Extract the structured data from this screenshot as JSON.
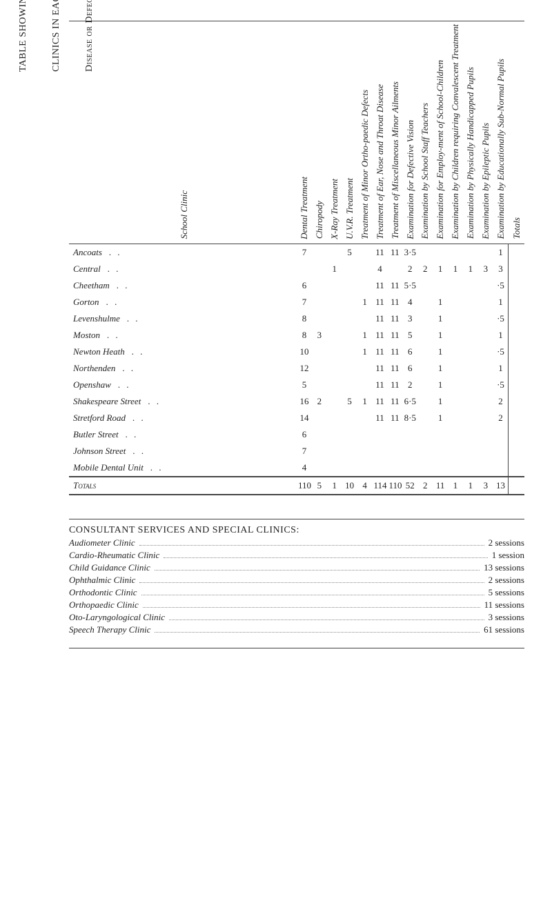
{
  "title_lines": [
    "TABLE SHOWING THE AVERAGE NUMBER OF HALF-DAY SESSIONS HELD AT SCHOOL",
    "CLINICS IN EACH WEEK DURING THE YEAR",
    "Disease or Defect"
  ],
  "first_col_header": "School Clinic",
  "columns": [
    "Dental Treatment",
    "Chiropody",
    "X-Ray Treatment",
    "U.V.R. Treatment",
    "Treatment of Minor Ortho-paedic Defects",
    "Treatment of Ear, Nose and Throat Disease",
    "Treatment of Miscellaneous Minor Ailments",
    "Examination for Defective Vision",
    "Examination by School Staff Teachers",
    "Examination for Employ-ment of School-Children",
    "Examination by Children requiring Convalescent Treatment",
    "Examination by Physically Handicapped Pupils",
    "Examination by Epileptic Pupils",
    "Examination by Educationally Sub-Normal Pupils"
  ],
  "total_col_label": "Totals",
  "rows": [
    {
      "name": "Ancoats",
      "v": [
        "7",
        "",
        "",
        "5",
        "",
        "11",
        "11",
        "3·5",
        "",
        "",
        "",
        "",
        "",
        "1"
      ],
      "total": ""
    },
    {
      "name": "Central",
      "v": [
        "",
        "",
        "1",
        "",
        "",
        "4",
        "",
        "2",
        "2",
        "1",
        "1",
        "1",
        "3",
        "3"
      ],
      "total": ""
    },
    {
      "name": "Cheetham",
      "v": [
        "6",
        "",
        "",
        "",
        "",
        "11",
        "11",
        "5·5",
        "",
        "",
        "",
        "",
        "",
        "·5"
      ],
      "total": ""
    },
    {
      "name": "Gorton",
      "v": [
        "7",
        "",
        "",
        "",
        "1",
        "11",
        "11",
        "4",
        "",
        "1",
        "",
        "",
        "",
        "1"
      ],
      "total": ""
    },
    {
      "name": "Levenshulme",
      "v": [
        "8",
        "",
        "",
        "",
        "",
        "11",
        "11",
        "3",
        "",
        "1",
        "",
        "",
        "",
        "·5"
      ],
      "total": ""
    },
    {
      "name": "Moston",
      "v": [
        "8",
        "3",
        "",
        "",
        "1",
        "11",
        "11",
        "5",
        "",
        "1",
        "",
        "",
        "",
        "1"
      ],
      "total": ""
    },
    {
      "name": "Newton Heath",
      "v": [
        "10",
        "",
        "",
        "",
        "1",
        "11",
        "11",
        "6",
        "",
        "1",
        "",
        "",
        "",
        "·5"
      ],
      "total": ""
    },
    {
      "name": "Northenden",
      "v": [
        "12",
        "",
        "",
        "",
        "",
        "11",
        "11",
        "6",
        "",
        "1",
        "",
        "",
        "",
        "1"
      ],
      "total": ""
    },
    {
      "name": "Openshaw",
      "v": [
        "5",
        "",
        "",
        "",
        "",
        "11",
        "11",
        "2",
        "",
        "1",
        "",
        "",
        "",
        "·5"
      ],
      "total": ""
    },
    {
      "name": "Shakespeare Street",
      "v": [
        "16",
        "2",
        "",
        "5",
        "1",
        "11",
        "11",
        "6·5",
        "",
        "1",
        "",
        "",
        "",
        "2"
      ],
      "total": ""
    },
    {
      "name": "Stretford Road",
      "v": [
        "14",
        "",
        "",
        "",
        "",
        "11",
        "11",
        "8·5",
        "",
        "1",
        "",
        "",
        "",
        "2"
      ],
      "total": ""
    },
    {
      "name": "Butler Street",
      "v": [
        "6",
        "",
        "",
        "",
        "",
        "",
        "",
        "",
        "",
        "",
        "",
        "",
        "",
        ""
      ],
      "total": ""
    },
    {
      "name": "Johnson Street",
      "v": [
        "7",
        "",
        "",
        "",
        "",
        "",
        "",
        "",
        "",
        "",
        "",
        "",
        "",
        ""
      ],
      "total": ""
    },
    {
      "name": "Mobile Dental Unit",
      "v": [
        "4",
        "",
        "",
        "",
        "",
        "",
        "",
        "",
        "",
        "",
        "",
        "",
        "",
        ""
      ],
      "total": ""
    }
  ],
  "totals_row": [
    "110",
    "5",
    "1",
    "10",
    "4",
    "114",
    "110",
    "52",
    "2",
    "11",
    "1",
    "1",
    "3",
    "13"
  ],
  "services_heading": "CONSULTANT SERVICES AND SPECIAL CLINICS:",
  "services": [
    {
      "name": "Audiometer Clinic",
      "sessions": "2 sessions"
    },
    {
      "name": "Cardio-Rheumatic Clinic",
      "sessions": "1 session"
    },
    {
      "name": "Child Guidance Clinic",
      "sessions": "13 sessions"
    },
    {
      "name": "Ophthalmic Clinic",
      "sessions": "2 sessions"
    },
    {
      "name": "Orthodontic Clinic",
      "sessions": "5 sessions"
    },
    {
      "name": "Orthopaedic Clinic",
      "sessions": "11 sessions"
    },
    {
      "name": "Oto-Laryngological Clinic",
      "sessions": "3 sessions"
    },
    {
      "name": "Speech Therapy Clinic",
      "sessions": "61 sessions"
    }
  ]
}
